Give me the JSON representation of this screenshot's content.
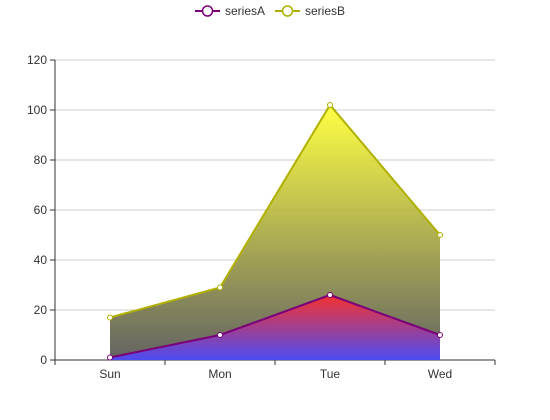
{
  "chart_data": {
    "type": "area",
    "categories": [
      "Sun",
      "Mon",
      "Tue",
      "Wed"
    ],
    "series": [
      {
        "name": "seriesA",
        "values": [
          1,
          10,
          26,
          10
        ],
        "line_color": "#7a007a",
        "symbol_color": "#7a007a",
        "gradient": [
          "#ff2a2a",
          "#4a4aff"
        ]
      },
      {
        "name": "seriesB",
        "values": [
          17,
          29,
          102,
          50
        ],
        "line_color": "#b0b000",
        "symbol_color": "#b0b000",
        "gradient": [
          "#ffff33",
          "#555555"
        ]
      }
    ],
    "y_ticks": [
      "0",
      "20",
      "40",
      "60",
      "80",
      "100",
      "120"
    ],
    "ylim": [
      0,
      120
    ],
    "grid": true,
    "legend_position": "top-center",
    "title": "",
    "xlabel": "",
    "ylabel": ""
  }
}
